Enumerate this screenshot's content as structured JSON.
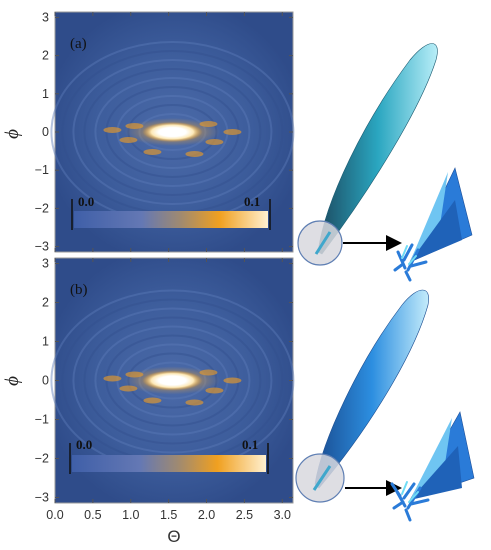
{
  "chart_data": [
    {
      "type": "heatmap",
      "panel_label": "(a)",
      "xlabel": "Θ",
      "ylabel": "ϕ",
      "xlim": [
        0,
        3.14159
      ],
      "ylim": [
        -3.14159,
        3.14159
      ],
      "xticks": [
        "0.0",
        "0.5",
        "1.0",
        "1.5",
        "2.0",
        "2.5",
        "3.0"
      ],
      "yticks": [
        "−3",
        "−2",
        "−1",
        "0",
        "1",
        "2",
        "3"
      ],
      "colorbar": {
        "min_label": "0.0",
        "max_label": "0.1",
        "min": 0.0,
        "max": 0.1
      },
      "hotspot": {
        "theta": 1.55,
        "phi": 0.0,
        "value": 0.1
      },
      "colors": [
        "#2a3c7e",
        "#4a6fb0",
        "#8a9ac8",
        "#f0a020",
        "#fbe8bc"
      ]
    },
    {
      "type": "heatmap",
      "panel_label": "(b)",
      "xlabel": "Θ",
      "ylabel": "ϕ",
      "xlim": [
        0,
        3.14159
      ],
      "ylim": [
        -3.14159,
        3.14159
      ],
      "xticks": [
        "0.0",
        "0.5",
        "1.0",
        "1.5",
        "2.0",
        "2.5",
        "3.0"
      ],
      "yticks": [
        "−3",
        "−2",
        "−1",
        "0",
        "1",
        "2",
        "3"
      ],
      "colorbar": {
        "min_label": "0.0",
        "max_label": "0.1",
        "min": 0.0,
        "max": 0.1
      },
      "hotspot": {
        "theta": 1.55,
        "phi": 0.0,
        "value": 0.1
      },
      "colors": [
        "#2a3c7e",
        "#4a6fb0",
        "#8a9ac8",
        "#f0a020",
        "#fbe8bc"
      ]
    }
  ],
  "illustrations": {
    "top": {
      "lobe_color": "#2aa6c0",
      "inset_color": "#2a7bd8"
    },
    "bottom": {
      "lobe_color": "#2c8ee0",
      "inset_color": "#2a7bd8"
    }
  }
}
